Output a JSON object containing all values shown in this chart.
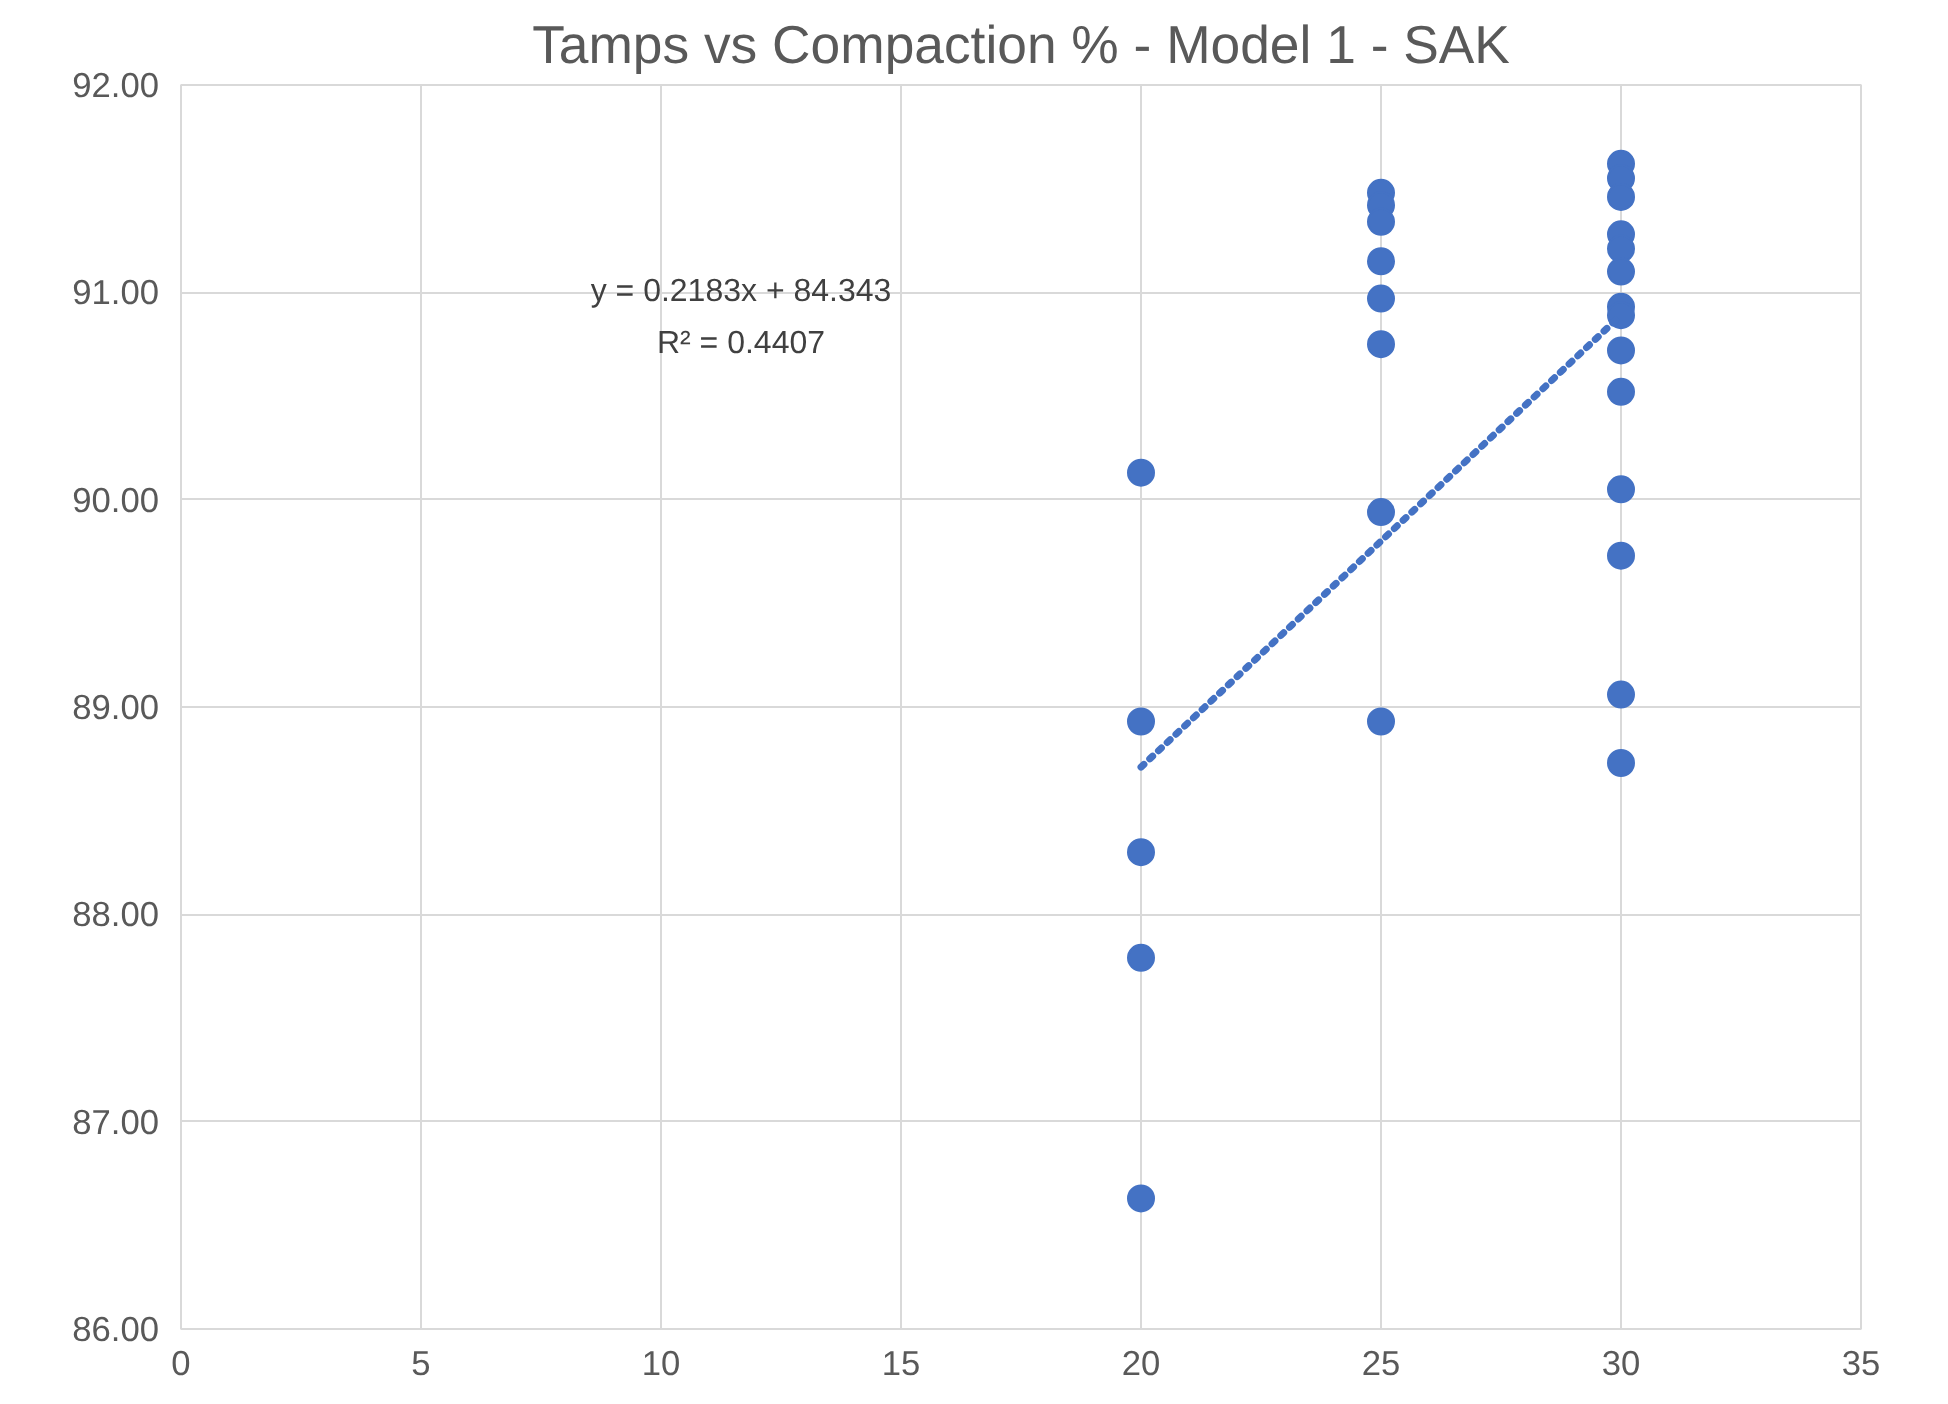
{
  "chart_data": {
    "type": "scatter",
    "title": "Tamps vs Compaction % - Model 1 - SAK",
    "series": [
      {
        "color": "#4472c4",
        "marker": "circle",
        "x": [
          20,
          20,
          20,
          20,
          20,
          25,
          25,
          25,
          25,
          25,
          25,
          25,
          25,
          30,
          30,
          30,
          30,
          30,
          30,
          30,
          30,
          30,
          30,
          30,
          30,
          30,
          30
        ],
        "values": [
          90.13,
          88.93,
          88.3,
          87.79,
          86.63,
          91.48,
          91.42,
          91.34,
          91.15,
          90.97,
          90.75,
          89.94,
          88.93,
          91.62,
          91.55,
          91.46,
          91.28,
          91.21,
          91.1,
          90.93,
          90.89,
          90.72,
          90.52,
          90.05,
          89.73,
          89.06,
          88.73
        ]
      },
      {
        "type": "line",
        "color": "#4472c4",
        "line_style": "dotted",
        "x": [
          20,
          30
        ],
        "values": [
          88.71,
          90.89
        ]
      }
    ],
    "annotations": [
      "y = 0.2183x + 84.343",
      "R² = 0.4407"
    ],
    "xlim": [
      0,
      35
    ],
    "xticks": [
      0,
      5,
      10,
      15,
      20,
      25,
      30,
      35
    ],
    "ylim": [
      86,
      92
    ],
    "yticks": [
      {
        "value": 86,
        "label": "86.00"
      },
      {
        "value": 87,
        "label": "87.00"
      },
      {
        "value": 88,
        "label": "88.00"
      },
      {
        "value": 89,
        "label": "89.00"
      },
      {
        "value": 90,
        "label": "90.00"
      },
      {
        "value": 91,
        "label": "91.00"
      },
      {
        "value": 92,
        "label": "92.00"
      }
    ],
    "grid": true
  }
}
